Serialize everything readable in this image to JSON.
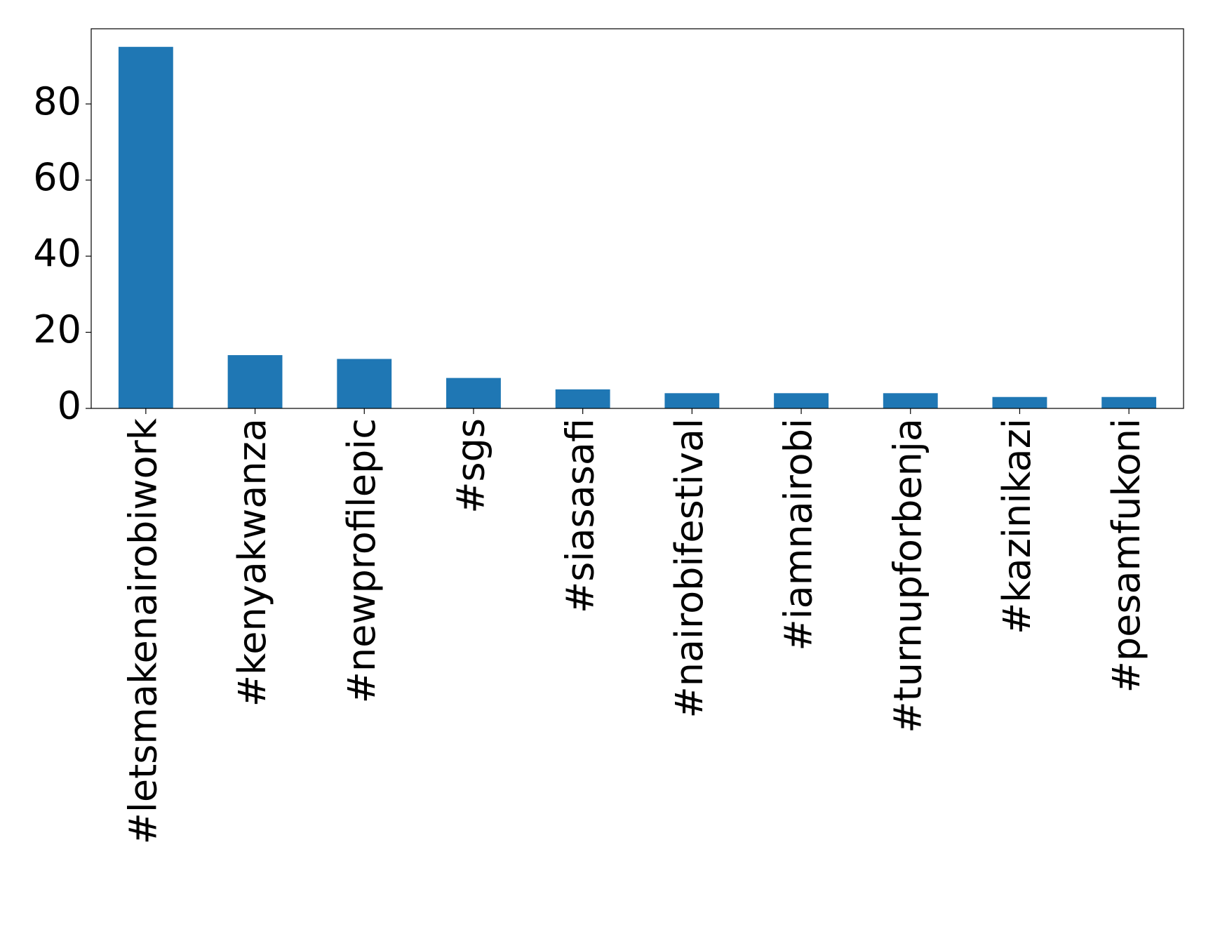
{
  "chart_data": {
    "type": "bar",
    "categories": [
      "#letsmakenairobiwork",
      "#kenyakwanza",
      "#newprofilepic",
      "#sgs",
      "#siasasafi",
      "#nairobifestival",
      "#iamnairobi",
      "#turnupforbenja",
      "#kazinikazi",
      "#pesamfukoni"
    ],
    "values": [
      95,
      14,
      13,
      8,
      5,
      4,
      4,
      4,
      3,
      3
    ],
    "color": "#1f77b4",
    "ylim": [
      0,
      99.75
    ],
    "yticks": [
      0,
      20,
      40,
      60,
      80
    ],
    "grid": false
  }
}
